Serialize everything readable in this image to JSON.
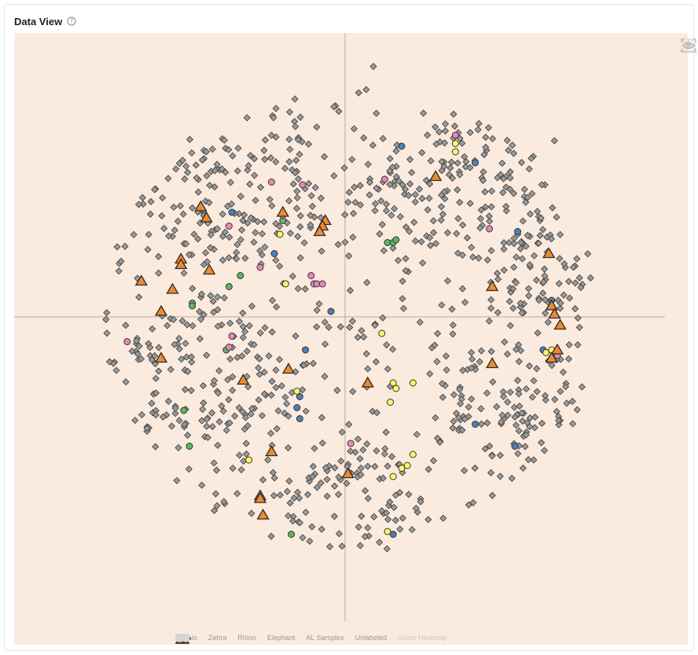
{
  "header": {
    "title": "Data View",
    "help_icon": "question-circle-icon"
  },
  "toolbar": {
    "tools": [
      "eye-icon",
      "download-icon",
      "lasso-select-icon",
      "clear-selection-icon"
    ]
  },
  "legend": {
    "items": [
      {
        "label": "Buffalo",
        "color": "#4f7fb5",
        "shape": "circle"
      },
      {
        "label": "Zebra",
        "color": "#5fb55c",
        "shape": "circle"
      },
      {
        "label": "Rhino",
        "color": "#ea86b9",
        "shape": "circle"
      },
      {
        "label": "Elephant",
        "color": "#fafa6a",
        "shape": "circle"
      },
      {
        "label": "AL Samples",
        "color": "#ee8a2f",
        "shape": "triangle"
      },
      {
        "label": "Unlabeled",
        "color": "#9a9a9a",
        "shape": "diamond"
      },
      {
        "label": "Score Heatmap",
        "color": "#d4d4d4",
        "shape": "rect",
        "disabled": true
      }
    ]
  },
  "chart_data": {
    "type": "scatter",
    "title": "",
    "xlabel": "",
    "ylabel": "",
    "xlim": [
      -10,
      10
    ],
    "ylim": [
      -10,
      10
    ],
    "axes": "crosshair through origin",
    "grid": false,
    "legend_position": "bottom-center",
    "background": "#fbebdf",
    "series": [
      {
        "name": "Buffalo",
        "color": "#4f7fb5",
        "marker": "circle",
        "points": [
          [
            2,
            6.2
          ],
          [
            4.6,
            5.6
          ],
          [
            -4.0,
            3.8
          ],
          [
            -2.5,
            2.3
          ],
          [
            -0.5,
            0.2
          ],
          [
            -1.4,
            -1.2
          ],
          [
            6.1,
            3.1
          ],
          [
            7.3,
            0.6
          ],
          [
            7.0,
            -1.2
          ],
          [
            -1.6,
            -2.9
          ],
          [
            -1.7,
            -3.3
          ],
          [
            -1.6,
            -3.7
          ],
          [
            4.6,
            -3.9
          ],
          [
            6.0,
            -4.7
          ],
          [
            1.7,
            -7.9
          ]
        ]
      },
      {
        "name": "Zebra",
        "color": "#5fb55c",
        "marker": "circle",
        "points": [
          [
            1.5,
            2.7
          ],
          [
            1.7,
            2.7
          ],
          [
            1.8,
            2.8
          ],
          [
            -2.2,
            3.5
          ],
          [
            -4.1,
            1.1
          ],
          [
            -3.7,
            1.5
          ],
          [
            -5.4,
            0.5
          ],
          [
            -5.4,
            0.4
          ],
          [
            -4.2,
            -1.2
          ],
          [
            -5.7,
            -3.4
          ],
          [
            -5.5,
            -4.7
          ],
          [
            -1.9,
            -7.9
          ]
        ]
      },
      {
        "name": "Rhino",
        "color": "#ea86b9",
        "marker": "circle",
        "points": [
          [
            3.9,
            6.6
          ],
          [
            1.4,
            5.0
          ],
          [
            -2.6,
            4.9
          ],
          [
            -1.5,
            4.8
          ],
          [
            -2.2,
            3.7
          ],
          [
            -4.1,
            3.3
          ],
          [
            -1.2,
            1.5
          ],
          [
            -3.0,
            1.8
          ],
          [
            -1.1,
            1.2
          ],
          [
            -1.0,
            1.2
          ],
          [
            -0.8,
            1.2
          ],
          [
            -4.0,
            -0.7
          ],
          [
            -4.1,
            -1.1
          ],
          [
            -7.7,
            -0.9
          ],
          [
            0.2,
            -4.6
          ],
          [
            7.5,
            -1.4
          ],
          [
            5.1,
            3.2
          ]
        ]
      },
      {
        "name": "Elephant",
        "color": "#fafa6a",
        "marker": "circle",
        "points": [
          [
            3.9,
            6.3
          ],
          [
            3.9,
            6.0
          ],
          [
            -2.3,
            3.0
          ],
          [
            -2.1,
            1.2
          ],
          [
            1.3,
            -0.6
          ],
          [
            1.7,
            -2.4
          ],
          [
            1.8,
            -2.6
          ],
          [
            2.4,
            -2.4
          ],
          [
            1.6,
            -3.1
          ],
          [
            -1.7,
            -2.7
          ],
          [
            -3.4,
            -5.2
          ],
          [
            2.4,
            -5.0
          ],
          [
            2.2,
            -5.4
          ],
          [
            2.0,
            -5.5
          ],
          [
            1.7,
            -5.8
          ],
          [
            7.1,
            -1.3
          ],
          [
            7.3,
            -1.2
          ],
          [
            1.5,
            -7.8
          ]
        ]
      },
      {
        "name": "AL Samples",
        "color": "#ee8a2f",
        "marker": "triangle",
        "points": [
          [
            3.2,
            5.1
          ],
          [
            -5.1,
            4.0
          ],
          [
            -4.9,
            3.6
          ],
          [
            -2.2,
            3.8
          ],
          [
            -0.7,
            3.5
          ],
          [
            -0.8,
            3.3
          ],
          [
            -0.9,
            3.1
          ],
          [
            -5.8,
            2.1
          ],
          [
            -5.8,
            1.9
          ],
          [
            -4.8,
            1.7
          ],
          [
            -7.2,
            1.3
          ],
          [
            -6.1,
            1.0
          ],
          [
            -6.5,
            0.2
          ],
          [
            7.2,
            2.3
          ],
          [
            5.2,
            1.1
          ],
          [
            7.3,
            0.4
          ],
          [
            7.4,
            0.1
          ],
          [
            7.6,
            -0.3
          ],
          [
            7.5,
            -1.2
          ],
          [
            7.3,
            -1.5
          ],
          [
            -6.5,
            -1.5
          ],
          [
            -3.6,
            -2.3
          ],
          [
            -2.0,
            -1.9
          ],
          [
            0.8,
            -2.4
          ],
          [
            5.2,
            -1.7
          ],
          [
            -2.6,
            -4.9
          ],
          [
            0.1,
            -5.7
          ],
          [
            -3.0,
            -6.5
          ],
          [
            -3.0,
            -6.6
          ],
          [
            -2.9,
            -7.2
          ]
        ]
      },
      {
        "name": "Unlabeled",
        "color": "#9a9a9a",
        "marker": "diamond",
        "count": 1400
      }
    ]
  }
}
